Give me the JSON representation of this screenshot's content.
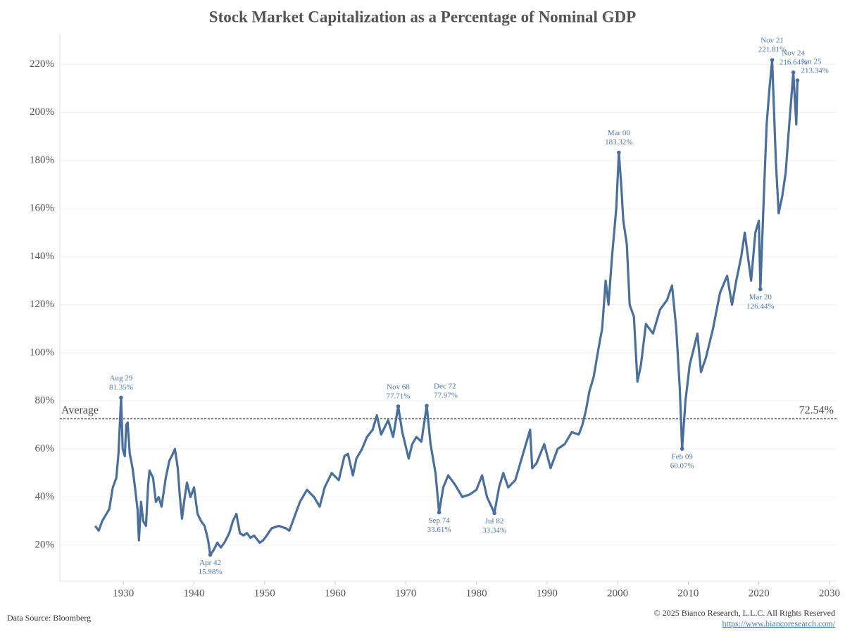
{
  "chart_data": {
    "type": "line",
    "title": "Stock Market Capitalization as a Percentage of Nominal GDP",
    "color": "#4a6f9c",
    "grid": true,
    "x": [
      1926.0,
      1926.5,
      1927.0,
      1928.0,
      1928.5,
      1929.0,
      1929.3,
      1929.67,
      1929.9,
      1930.2,
      1930.4,
      1930.6,
      1930.9,
      1931.3,
      1931.6,
      1932.0,
      1932.2,
      1932.5,
      1932.8,
      1933.2,
      1933.5,
      1933.7,
      1934.2,
      1934.6,
      1935.0,
      1935.4,
      1936.0,
      1936.5,
      1937.0,
      1937.3,
      1937.7,
      1938.0,
      1938.3,
      1938.6,
      1939.0,
      1939.5,
      1940.0,
      1940.5,
      1941.0,
      1941.5,
      1942.0,
      1942.3,
      1942.8,
      1943.3,
      1943.8,
      1944.3,
      1945.0,
      1945.5,
      1946.0,
      1946.5,
      1947.0,
      1947.5,
      1948.0,
      1948.5,
      1949.3,
      1949.8,
      1950.3,
      1951.0,
      1952.0,
      1953.0,
      1953.5,
      1954.0,
      1955.0,
      1956.0,
      1957.0,
      1957.8,
      1958.5,
      1959.5,
      1960.5,
      1961.3,
      1961.8,
      1962.5,
      1963.0,
      1963.8,
      1964.5,
      1965.3,
      1965.9,
      1966.5,
      1967.5,
      1968.2,
      1968.92,
      1969.5,
      1970.4,
      1970.9,
      1971.5,
      1972.2,
      1972.96,
      1973.5,
      1974.2,
      1974.71,
      1975.3,
      1976.0,
      1977.0,
      1978.0,
      1979.0,
      1980.0,
      1980.8,
      1981.5,
      1982.54,
      1983.2,
      1983.8,
      1984.5,
      1985.5,
      1986.5,
      1987.6,
      1987.9,
      1988.5,
      1989.6,
      1990.5,
      1991.5,
      1992.5,
      1993.5,
      1994.5,
      1995.0,
      1995.5,
      1996.0,
      1996.6,
      1997.3,
      1997.8,
      1998.3,
      1998.7,
      1999.2,
      1999.8,
      2000.17,
      2000.5,
      2000.8,
      2001.3,
      2001.7,
      2002.3,
      2002.8,
      2003.3,
      2004.0,
      2005.0,
      2006.0,
      2007.0,
      2007.7,
      2008.3,
      2008.8,
      2009.13,
      2009.6,
      2010.2,
      2010.8,
      2011.3,
      2011.8,
      2012.5,
      2013.5,
      2014.5,
      2015.5,
      2016.2,
      2016.8,
      2017.5,
      2018.0,
      2018.9,
      2019.5,
      2020.0,
      2020.21,
      2020.7,
      2021.1,
      2021.5,
      2021.88,
      2022.4,
      2022.8,
      2023.3,
      2023.8,
      2024.3,
      2024.88,
      2025.3,
      2025.46
    ],
    "values": [
      28,
      26,
      30,
      35,
      44,
      48,
      58,
      81.35,
      60,
      57,
      70,
      71,
      58,
      52,
      45,
      35,
      22,
      38,
      30,
      28,
      45,
      51,
      48,
      38,
      40,
      36,
      48,
      55,
      58,
      60,
      52,
      40,
      31,
      38,
      46,
      40,
      44,
      33,
      30,
      28,
      22,
      15.98,
      18,
      21,
      19,
      21,
      25,
      30,
      33,
      25,
      24,
      25,
      23,
      24,
      21,
      22,
      24,
      27,
      28,
      27,
      26,
      30,
      38,
      43,
      40,
      36,
      44,
      50,
      47,
      57,
      58,
      49,
      56,
      60,
      65,
      68,
      74,
      66,
      72,
      65,
      77.71,
      67,
      56,
      62,
      65,
      63,
      77.97,
      62,
      50,
      33.61,
      44,
      49,
      45,
      40,
      41,
      43,
      49,
      40,
      33.34,
      44,
      50,
      44,
      47,
      57,
      68,
      52,
      54,
      62,
      52,
      60,
      62,
      67,
      66,
      70,
      76,
      84,
      90,
      102,
      110,
      130,
      120,
      140,
      160,
      183.32,
      170,
      155,
      145,
      120,
      115,
      88,
      95,
      112,
      108,
      118,
      122,
      128,
      110,
      85,
      60.07,
      80,
      95,
      102,
      108,
      92,
      98,
      110,
      125,
      132,
      120,
      130,
      140,
      150,
      130,
      150,
      155,
      126.44,
      165,
      195,
      210,
      221.81,
      180,
      158,
      165,
      175,
      195,
      216.64,
      195,
      213.34
    ],
    "xlim": [
      1921,
      2031
    ],
    "xticks": [
      1930,
      1940,
      1950,
      1960,
      1970,
      1980,
      1990,
      2000,
      2010,
      2020,
      2030
    ],
    "ylim": [
      5,
      233
    ],
    "yticks": [
      {
        "value": 20,
        "label": "20%"
      },
      {
        "value": 40,
        "label": "40%"
      },
      {
        "value": 60,
        "label": "60%"
      },
      {
        "value": 80,
        "label": "80%"
      },
      {
        "value": 100,
        "label": "100%"
      },
      {
        "value": 120,
        "label": "120%"
      },
      {
        "value": 140,
        "label": "140%"
      },
      {
        "value": 160,
        "label": "160%"
      },
      {
        "value": 180,
        "label": "180%"
      },
      {
        "value": 200,
        "label": "200%"
      },
      {
        "value": 220,
        "label": "220%"
      }
    ],
    "average": {
      "label": "Average",
      "value": 72.54,
      "value_label": "72.54%"
    },
    "annotations": [
      {
        "label": "Aug 29",
        "x": 1929.67,
        "value": 81.35,
        "value_label": "81.35%"
      },
      {
        "label": "Apr 42",
        "x": 1942.3,
        "value": 15.98,
        "value_label": "15.98%"
      },
      {
        "label": "Nov 68",
        "x": 1968.92,
        "value": 77.71,
        "value_label": "77.71%"
      },
      {
        "label": "Dec 72",
        "x": 1972.96,
        "value": 77.97,
        "value_label": "77.97%"
      },
      {
        "label": "Sep 74",
        "x": 1974.71,
        "value": 33.61,
        "value_label": "33.61%"
      },
      {
        "label": "Jul 82",
        "x": 1982.54,
        "value": 33.34,
        "value_label": "33.34%"
      },
      {
        "label": "Mar 00",
        "x": 2000.17,
        "value": 183.32,
        "value_label": "183.32%"
      },
      {
        "label": "Feb 09",
        "x": 2009.13,
        "value": 60.07,
        "value_label": "60.07%"
      },
      {
        "label": "Mar 20",
        "x": 2020.21,
        "value": 126.44,
        "value_label": "126.44%"
      },
      {
        "label": "Nov 21",
        "x": 2021.88,
        "value": 221.81,
        "value_label": "221.81%"
      },
      {
        "label": "Nov 24",
        "x": 2024.88,
        "value": 216.64,
        "value_label": "216.64%"
      },
      {
        "label": "Jun 25",
        "x": 2025.46,
        "value": 213.34,
        "value_label": "213.34%"
      }
    ],
    "source": "Data Source: Bloomberg",
    "copyright": "© 2025 Bianco Research, L.L.C. All Rights Reserved",
    "url": "https://www.biancoresearch.com/"
  }
}
